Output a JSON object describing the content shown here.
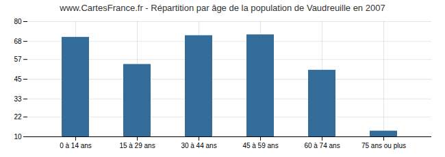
{
  "chart_data": {
    "type": "bar",
    "title": "www.CartesFrance.fr - Répartition par âge de la population de Vaudreuille en 2007",
    "categories": [
      "0 à 14 ans",
      "15 à 29 ans",
      "30 à 44 ans",
      "45 à 59 ans",
      "60 à 74 ans",
      "75 ans ou plus"
    ],
    "values": [
      70.5,
      54.0,
      71.5,
      72.0,
      50.5,
      13.5
    ],
    "color": "#336b99",
    "ylim": [
      10,
      80
    ],
    "yticks": [
      10,
      22,
      33,
      45,
      57,
      68,
      80
    ],
    "grid": true
  }
}
